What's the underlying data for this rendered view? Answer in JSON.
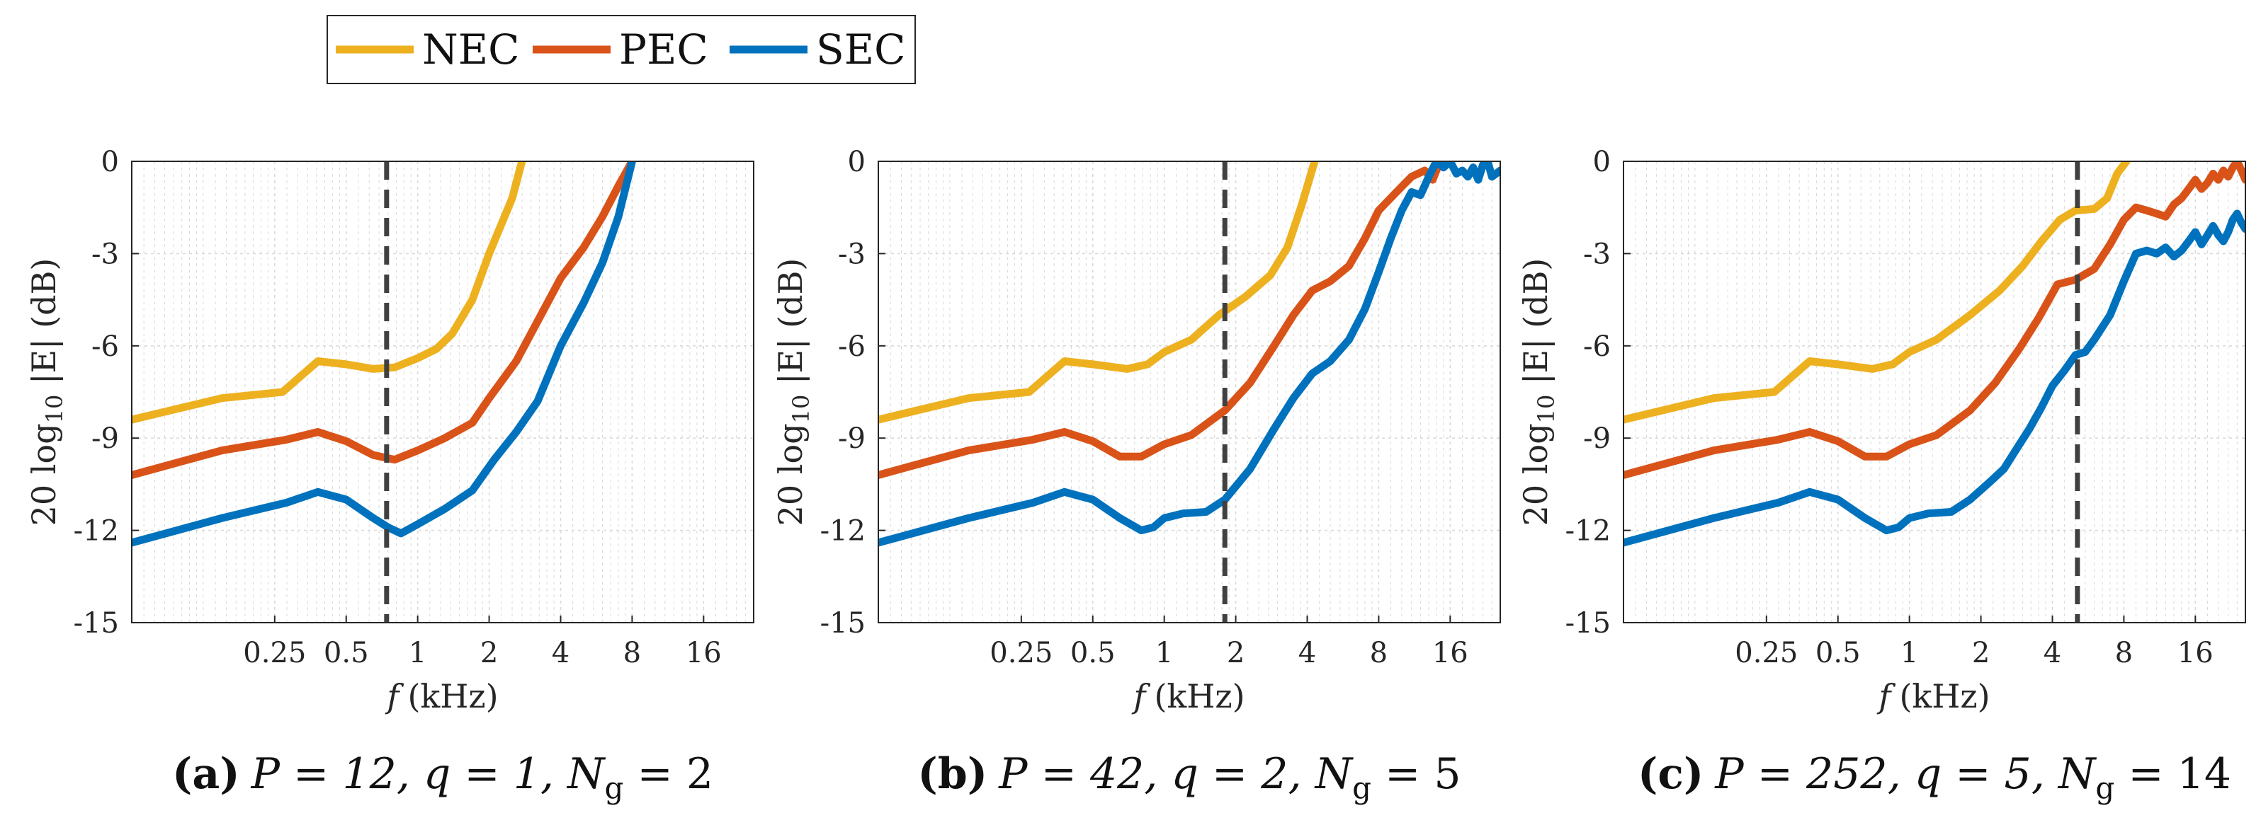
{
  "legend": [
    {
      "label": "NEC",
      "color": "#EDB120"
    },
    {
      "label": "PEC",
      "color": "#D95319"
    },
    {
      "label": "SEC",
      "color": "#0072BD"
    }
  ],
  "colors": {
    "axis": "#262626",
    "grid": "#d9d9d9",
    "dashed": "#404040"
  },
  "chart_data": [
    {
      "type": "line",
      "panel": "a",
      "caption": {
        "tag": "(a)",
        "text": "P = 12, q = 1, N",
        "sub": "g",
        "tail": " = 2"
      },
      "xlabel": "f (kHz)",
      "ylabel": "20 log10 |E| (dB)",
      "xscale": "log2",
      "xlim": [
        0.0625,
        26
      ],
      "ylim": [
        -15,
        0
      ],
      "xticks": [
        0.25,
        0.5,
        1,
        2,
        4,
        8,
        16
      ],
      "xtick_labels": [
        "0.25",
        "0.5",
        "1",
        "2",
        "4",
        "8",
        "16"
      ],
      "yticks": [
        0,
        -3,
        -6,
        -9,
        -12,
        -15
      ],
      "ytick_labels": [
        "0",
        "-3",
        "-6",
        "-9",
        "-12",
        "-15"
      ],
      "vline": 0.74,
      "series": [
        {
          "name": "NEC",
          "points": [
            [
              0.0625,
              -8.4
            ],
            [
              0.15,
              -7.7
            ],
            [
              0.27,
              -7.5
            ],
            [
              0.38,
              -6.5
            ],
            [
              0.5,
              -6.6
            ],
            [
              0.65,
              -6.75
            ],
            [
              0.8,
              -6.7
            ],
            [
              1,
              -6.4
            ],
            [
              1.2,
              -6.1
            ],
            [
              1.4,
              -5.6
            ],
            [
              1.7,
              -4.5
            ],
            [
              2.0,
              -3.0
            ],
            [
              2.5,
              -1.2
            ],
            [
              2.75,
              0.0
            ]
          ]
        },
        {
          "name": "PEC",
          "points": [
            [
              0.0625,
              -10.2
            ],
            [
              0.15,
              -9.4
            ],
            [
              0.28,
              -9.05
            ],
            [
              0.38,
              -8.8
            ],
            [
              0.5,
              -9.1
            ],
            [
              0.65,
              -9.55
            ],
            [
              0.8,
              -9.7
            ],
            [
              1,
              -9.4
            ],
            [
              1.3,
              -9.0
            ],
            [
              1.7,
              -8.5
            ],
            [
              2.0,
              -7.7
            ],
            [
              2.6,
              -6.5
            ],
            [
              3.2,
              -5.2
            ],
            [
              4,
              -3.8
            ],
            [
              5,
              -2.8
            ],
            [
              6,
              -1.8
            ],
            [
              7,
              -0.8
            ],
            [
              8,
              0.0
            ]
          ]
        },
        {
          "name": "SEC",
          "points": [
            [
              0.0625,
              -12.4
            ],
            [
              0.15,
              -11.6
            ],
            [
              0.28,
              -11.1
            ],
            [
              0.38,
              -10.75
            ],
            [
              0.5,
              -11.0
            ],
            [
              0.65,
              -11.6
            ],
            [
              0.75,
              -11.9
            ],
            [
              0.85,
              -12.1
            ],
            [
              1,
              -11.8
            ],
            [
              1.3,
              -11.3
            ],
            [
              1.7,
              -10.7
            ],
            [
              2.1,
              -9.7
            ],
            [
              2.6,
              -8.8
            ],
            [
              3.2,
              -7.8
            ],
            [
              4,
              -6.0
            ],
            [
              5,
              -4.6
            ],
            [
              6,
              -3.3
            ],
            [
              7,
              -1.8
            ],
            [
              8,
              0.0
            ]
          ]
        }
      ]
    },
    {
      "type": "line",
      "panel": "b",
      "caption": {
        "tag": "(b)",
        "text": "P = 42, q = 2, N",
        "sub": "g",
        "tail": " = 5"
      },
      "xlabel": "f (kHz)",
      "ylabel": "20 log10 |E| (dB)",
      "xscale": "log2",
      "xlim": [
        0.0625,
        26
      ],
      "ylim": [
        -15,
        0
      ],
      "xticks": [
        0.25,
        0.5,
        1,
        2,
        4,
        8,
        16
      ],
      "xtick_labels": [
        "0.25",
        "0.5",
        "1",
        "2",
        "4",
        "8",
        "16"
      ],
      "yticks": [
        0,
        -3,
        -6,
        -9,
        -12,
        -15
      ],
      "ytick_labels": [
        "0",
        "-3",
        "-6",
        "-9",
        "-12",
        "-15"
      ],
      "vline": 1.8,
      "series": [
        {
          "name": "NEC",
          "points": [
            [
              0.0625,
              -8.4
            ],
            [
              0.15,
              -7.7
            ],
            [
              0.27,
              -7.5
            ],
            [
              0.38,
              -6.5
            ],
            [
              0.5,
              -6.6
            ],
            [
              0.7,
              -6.75
            ],
            [
              0.85,
              -6.6
            ],
            [
              1,
              -6.2
            ],
            [
              1.3,
              -5.8
            ],
            [
              1.7,
              -5.0
            ],
            [
              2.2,
              -4.4
            ],
            [
              2.8,
              -3.7
            ],
            [
              3.3,
              -2.8
            ],
            [
              3.8,
              -1.4
            ],
            [
              4.3,
              0.0
            ]
          ]
        },
        {
          "name": "PEC",
          "points": [
            [
              0.0625,
              -10.2
            ],
            [
              0.15,
              -9.4
            ],
            [
              0.28,
              -9.05
            ],
            [
              0.38,
              -8.8
            ],
            [
              0.5,
              -9.1
            ],
            [
              0.65,
              -9.6
            ],
            [
              0.8,
              -9.6
            ],
            [
              1,
              -9.2
            ],
            [
              1.3,
              -8.9
            ],
            [
              1.8,
              -8.1
            ],
            [
              2.3,
              -7.2
            ],
            [
              2.9,
              -6.0
            ],
            [
              3.5,
              -5.0
            ],
            [
              4.2,
              -4.2
            ],
            [
              5,
              -3.9
            ],
            [
              6,
              -3.4
            ],
            [
              7,
              -2.5
            ],
            [
              8,
              -1.6
            ],
            [
              9.5,
              -1.0
            ],
            [
              11,
              -0.5
            ],
            [
              12.5,
              -0.3
            ],
            [
              13.5,
              -0.6
            ],
            [
              14.5,
              0.0
            ]
          ]
        },
        {
          "name": "SEC",
          "points": [
            [
              0.0625,
              -12.4
            ],
            [
              0.15,
              -11.6
            ],
            [
              0.28,
              -11.1
            ],
            [
              0.38,
              -10.75
            ],
            [
              0.5,
              -11.0
            ],
            [
              0.65,
              -11.6
            ],
            [
              0.8,
              -12.0
            ],
            [
              0.9,
              -11.9
            ],
            [
              1,
              -11.6
            ],
            [
              1.2,
              -11.45
            ],
            [
              1.5,
              -11.4
            ],
            [
              1.8,
              -11.0
            ],
            [
              2.3,
              -10.0
            ],
            [
              2.9,
              -8.7
            ],
            [
              3.5,
              -7.7
            ],
            [
              4.2,
              -6.9
            ],
            [
              5,
              -6.5
            ],
            [
              6,
              -5.8
            ],
            [
              7,
              -4.8
            ],
            [
              8,
              -3.6
            ],
            [
              9,
              -2.5
            ],
            [
              10,
              -1.6
            ],
            [
              11,
              -1.0
            ],
            [
              12,
              -1.1
            ],
            [
              13,
              -0.5
            ],
            [
              14,
              0.0
            ],
            [
              15,
              -0.2
            ],
            [
              16,
              0.0
            ],
            [
              17,
              -0.4
            ],
            [
              18,
              -0.3
            ],
            [
              19,
              -0.5
            ],
            [
              20,
              -0.2
            ],
            [
              21,
              -0.6
            ],
            [
              22,
              -0.1
            ],
            [
              23,
              0.0
            ],
            [
              24,
              -0.5
            ],
            [
              26,
              -0.3
            ]
          ]
        }
      ]
    },
    {
      "type": "line",
      "panel": "c",
      "caption": {
        "tag": "(c)",
        "text": "P = 252, q = 5, N",
        "sub": "g",
        "tail": " = 14"
      },
      "xlabel": "f (kHz)",
      "ylabel": "20 log10 |E| (dB)",
      "xscale": "log2",
      "xlim": [
        0.0625,
        26
      ],
      "ylim": [
        -15,
        0
      ],
      "xticks": [
        0.25,
        0.5,
        1,
        2,
        4,
        8,
        16
      ],
      "xtick_labels": [
        "0.25",
        "0.5",
        "1",
        "2",
        "4",
        "8",
        "16"
      ],
      "yticks": [
        0,
        -3,
        -6,
        -9,
        -12,
        -15
      ],
      "ytick_labels": [
        "0",
        "-3",
        "-6",
        "-9",
        "-12",
        "-15"
      ],
      "vline": 5.1,
      "series": [
        {
          "name": "NEC",
          "points": [
            [
              0.0625,
              -8.4
            ],
            [
              0.15,
              -7.7
            ],
            [
              0.27,
              -7.5
            ],
            [
              0.38,
              -6.5
            ],
            [
              0.5,
              -6.6
            ],
            [
              0.7,
              -6.75
            ],
            [
              0.85,
              -6.6
            ],
            [
              1,
              -6.2
            ],
            [
              1.3,
              -5.8
            ],
            [
              1.8,
              -5.0
            ],
            [
              2.4,
              -4.2
            ],
            [
              3,
              -3.4
            ],
            [
              3.6,
              -2.6
            ],
            [
              4.3,
              -1.9
            ],
            [
              5,
              -1.6
            ],
            [
              6,
              -1.55
            ],
            [
              6.8,
              -1.2
            ],
            [
              7.5,
              -0.4
            ],
            [
              8.2,
              0.0
            ]
          ]
        },
        {
          "name": "PEC",
          "points": [
            [
              0.0625,
              -10.2
            ],
            [
              0.15,
              -9.4
            ],
            [
              0.28,
              -9.05
            ],
            [
              0.38,
              -8.8
            ],
            [
              0.5,
              -9.1
            ],
            [
              0.65,
              -9.6
            ],
            [
              0.8,
              -9.6
            ],
            [
              1,
              -9.2
            ],
            [
              1.3,
              -8.9
            ],
            [
              1.8,
              -8.1
            ],
            [
              2.3,
              -7.2
            ],
            [
              2.9,
              -6.1
            ],
            [
              3.5,
              -5.1
            ],
            [
              4.2,
              -4.0
            ],
            [
              5,
              -3.85
            ],
            [
              6,
              -3.5
            ],
            [
              7,
              -2.7
            ],
            [
              8,
              -1.9
            ],
            [
              9,
              -1.5
            ],
            [
              10,
              -1.6
            ],
            [
              11,
              -1.7
            ],
            [
              12,
              -1.8
            ],
            [
              13,
              -1.4
            ],
            [
              14,
              -1.2
            ],
            [
              15,
              -0.9
            ],
            [
              16,
              -0.6
            ],
            [
              17,
              -0.9
            ],
            [
              18,
              -0.7
            ],
            [
              19,
              -0.4
            ],
            [
              20,
              -0.6
            ],
            [
              21,
              -0.3
            ],
            [
              22,
              -0.5
            ],
            [
              23,
              -0.2
            ],
            [
              24,
              -0.0
            ],
            [
              25,
              -0.3
            ],
            [
              26,
              -0.6
            ]
          ]
        },
        {
          "name": "SEC",
          "points": [
            [
              0.0625,
              -12.4
            ],
            [
              0.15,
              -11.6
            ],
            [
              0.28,
              -11.1
            ],
            [
              0.38,
              -10.75
            ],
            [
              0.5,
              -11.0
            ],
            [
              0.65,
              -11.6
            ],
            [
              0.8,
              -12.0
            ],
            [
              0.9,
              -11.9
            ],
            [
              1,
              -11.6
            ],
            [
              1.2,
              -11.45
            ],
            [
              1.5,
              -11.4
            ],
            [
              1.8,
              -11.0
            ],
            [
              2.2,
              -10.4
            ],
            [
              2.5,
              -10.0
            ],
            [
              2.8,
              -9.4
            ],
            [
              3.2,
              -8.7
            ],
            [
              3.6,
              -8.0
            ],
            [
              4.0,
              -7.3
            ],
            [
              4.5,
              -6.8
            ],
            [
              5,
              -6.3
            ],
            [
              5.5,
              -6.2
            ],
            [
              6,
              -5.8
            ],
            [
              7,
              -5.0
            ],
            [
              8,
              -3.9
            ],
            [
              9,
              -3.0
            ],
            [
              10,
              -2.9
            ],
            [
              11,
              -3.0
            ],
            [
              12,
              -2.8
            ],
            [
              13,
              -3.1
            ],
            [
              14,
              -2.9
            ],
            [
              15,
              -2.6
            ],
            [
              16,
              -2.3
            ],
            [
              17,
              -2.7
            ],
            [
              18,
              -2.4
            ],
            [
              19,
              -2.1
            ],
            [
              20,
              -2.4
            ],
            [
              21,
              -2.6
            ],
            [
              22,
              -2.3
            ],
            [
              23,
              -1.9
            ],
            [
              24,
              -1.7
            ],
            [
              25,
              -2.0
            ],
            [
              26,
              -2.2
            ]
          ]
        }
      ]
    }
  ]
}
